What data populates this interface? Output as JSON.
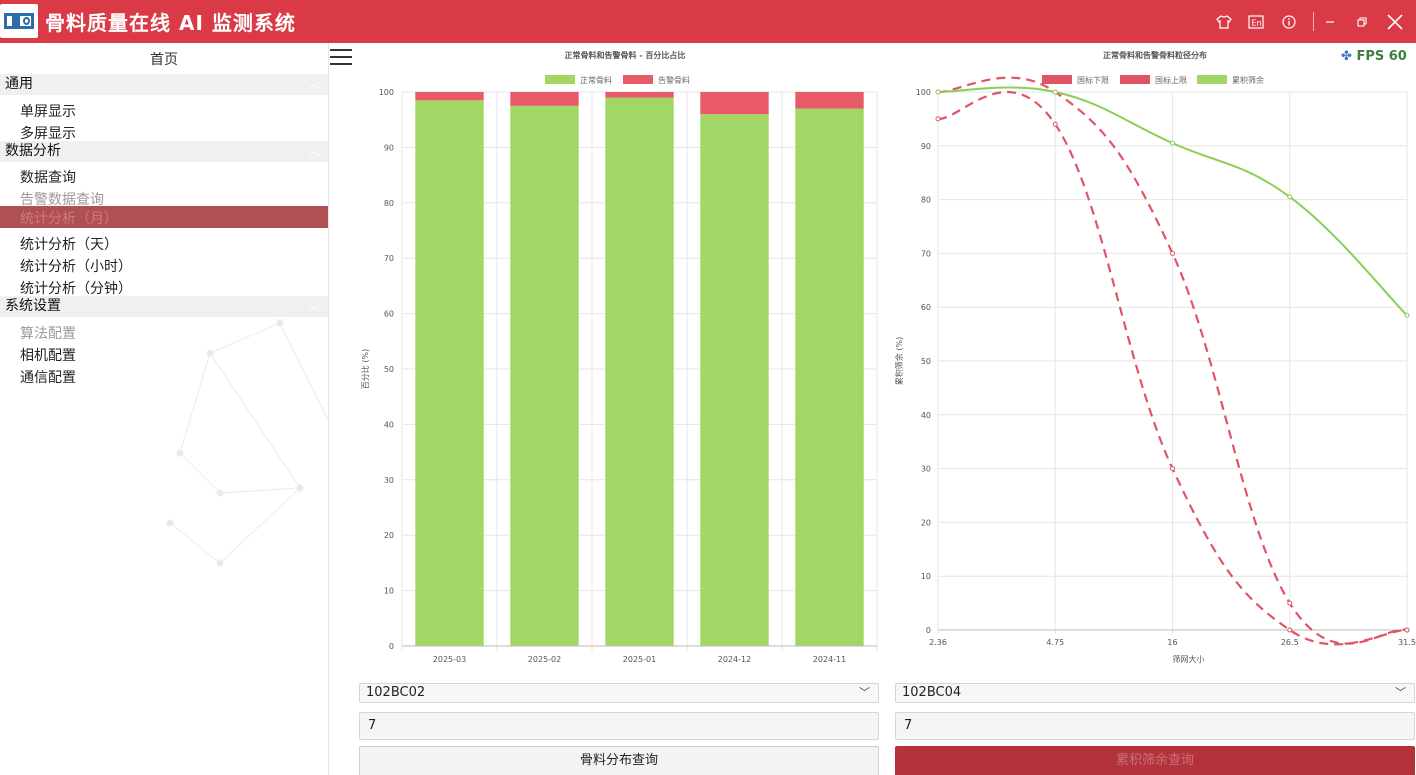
{
  "app": {
    "title": "骨料质量在线 AI 监测系统"
  },
  "titlebar": {
    "icons": [
      "shirt-icon",
      "en-language-icon",
      "info-icon",
      "minimize-icon",
      "restore-icon",
      "close-icon"
    ]
  },
  "sidebar": {
    "home": "首页",
    "groups": [
      {
        "label": "通用",
        "items": [
          "单屏显示",
          "多屏显示"
        ]
      },
      {
        "label": "数据分析",
        "items": [
          "数据查询",
          "告警数据查询",
          "统计分析（月）",
          "统计分析（天）",
          "统计分析（小时）",
          "统计分析（分钟）"
        ]
      },
      {
        "label": "系统设置",
        "items": [
          "算法配置",
          "相机配置",
          "通信配置"
        ]
      }
    ],
    "selected_index": 2
  },
  "fps": "FPS 60",
  "colors": {
    "brand": "#d93a46",
    "normal": "#a3d765",
    "alarm": "#e85a68",
    "sidebar_selected": "#b05055"
  },
  "left_panel": {
    "device": "102BC02",
    "count": "7",
    "button": "骨料分布查询"
  },
  "right_panel": {
    "device": "102BC04",
    "count": "7",
    "button": "累积筛余查询"
  },
  "chart_data": [
    {
      "type": "bar",
      "title": "正常骨料和告警骨料 - 百分比占比",
      "ylabel": "百分比 (%)",
      "xlabel": "",
      "categories": [
        "2025-03",
        "2025-02",
        "2025-01",
        "2024-12",
        "2024-11"
      ],
      "series": [
        {
          "name": "正常骨料",
          "color": "#a3d765",
          "values": [
            98.5,
            97.5,
            99,
            96,
            97
          ]
        },
        {
          "name": "告警骨料",
          "color": "#e85a68",
          "values": [
            1.5,
            2.5,
            1,
            4,
            3
          ]
        }
      ],
      "stacked": true,
      "ylim": [
        0,
        100
      ],
      "yticks": [
        0,
        10,
        20,
        30,
        40,
        50,
        60,
        70,
        80,
        90,
        100
      ],
      "legend": "top"
    },
    {
      "type": "line",
      "title": "正常骨料和告警骨料粒径分布",
      "ylabel": "累积筛余 (%)",
      "xlabel": "筛网大小",
      "x": [
        "2.36",
        "4.75",
        "16",
        "26.5",
        "31.5"
      ],
      "series": [
        {
          "name": "国标下限",
          "color": "#e05565",
          "dash": true,
          "values": [
            95,
            94,
            30,
            0,
            0
          ]
        },
        {
          "name": "国标上限",
          "color": "#e05565",
          "dash": true,
          "values": [
            100,
            100,
            70,
            5,
            0
          ]
        },
        {
          "name": "累积筛余",
          "color": "#8ccd55",
          "dash": false,
          "values": [
            100,
            100,
            90.5,
            80.5,
            58.5
          ]
        }
      ],
      "ylim": [
        0,
        100
      ],
      "yticks": [
        0,
        10,
        20,
        30,
        40,
        50,
        60,
        70,
        80,
        90,
        100
      ],
      "legend": "top"
    }
  ]
}
